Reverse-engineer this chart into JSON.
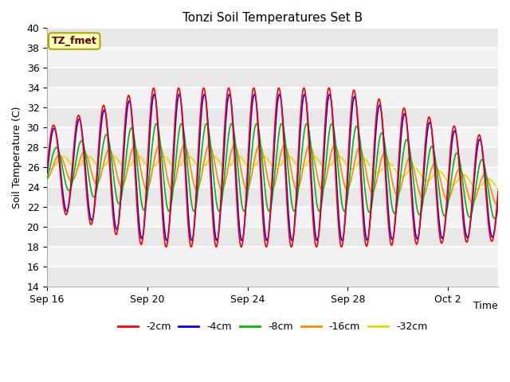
{
  "title": "Tonzi Soil Temperatures Set B",
  "xlabel": "Time",
  "ylabel": "Soil Temperature (C)",
  "ylim": [
    14,
    40
  ],
  "xlim_days": [
    0,
    18
  ],
  "annotation": "TZ_fmet",
  "series_colors": {
    "-2cm": "#ff0000",
    "-4cm": "#0000ff",
    "-8cm": "#00bb00",
    "-16cm": "#ff8800",
    "-32cm": "#dddd00"
  },
  "xtick_labels": [
    "Sep 16",
    "Sep 20",
    "Sep 24",
    "Sep 28",
    "Oct 2"
  ],
  "xtick_positions": [
    0,
    4,
    8,
    12,
    16
  ],
  "ytick_positions": [
    14,
    16,
    18,
    20,
    22,
    24,
    26,
    28,
    30,
    32,
    34,
    36,
    38,
    40
  ],
  "linewidth": 1.2,
  "num_days": 18,
  "pts_per_day": 48
}
